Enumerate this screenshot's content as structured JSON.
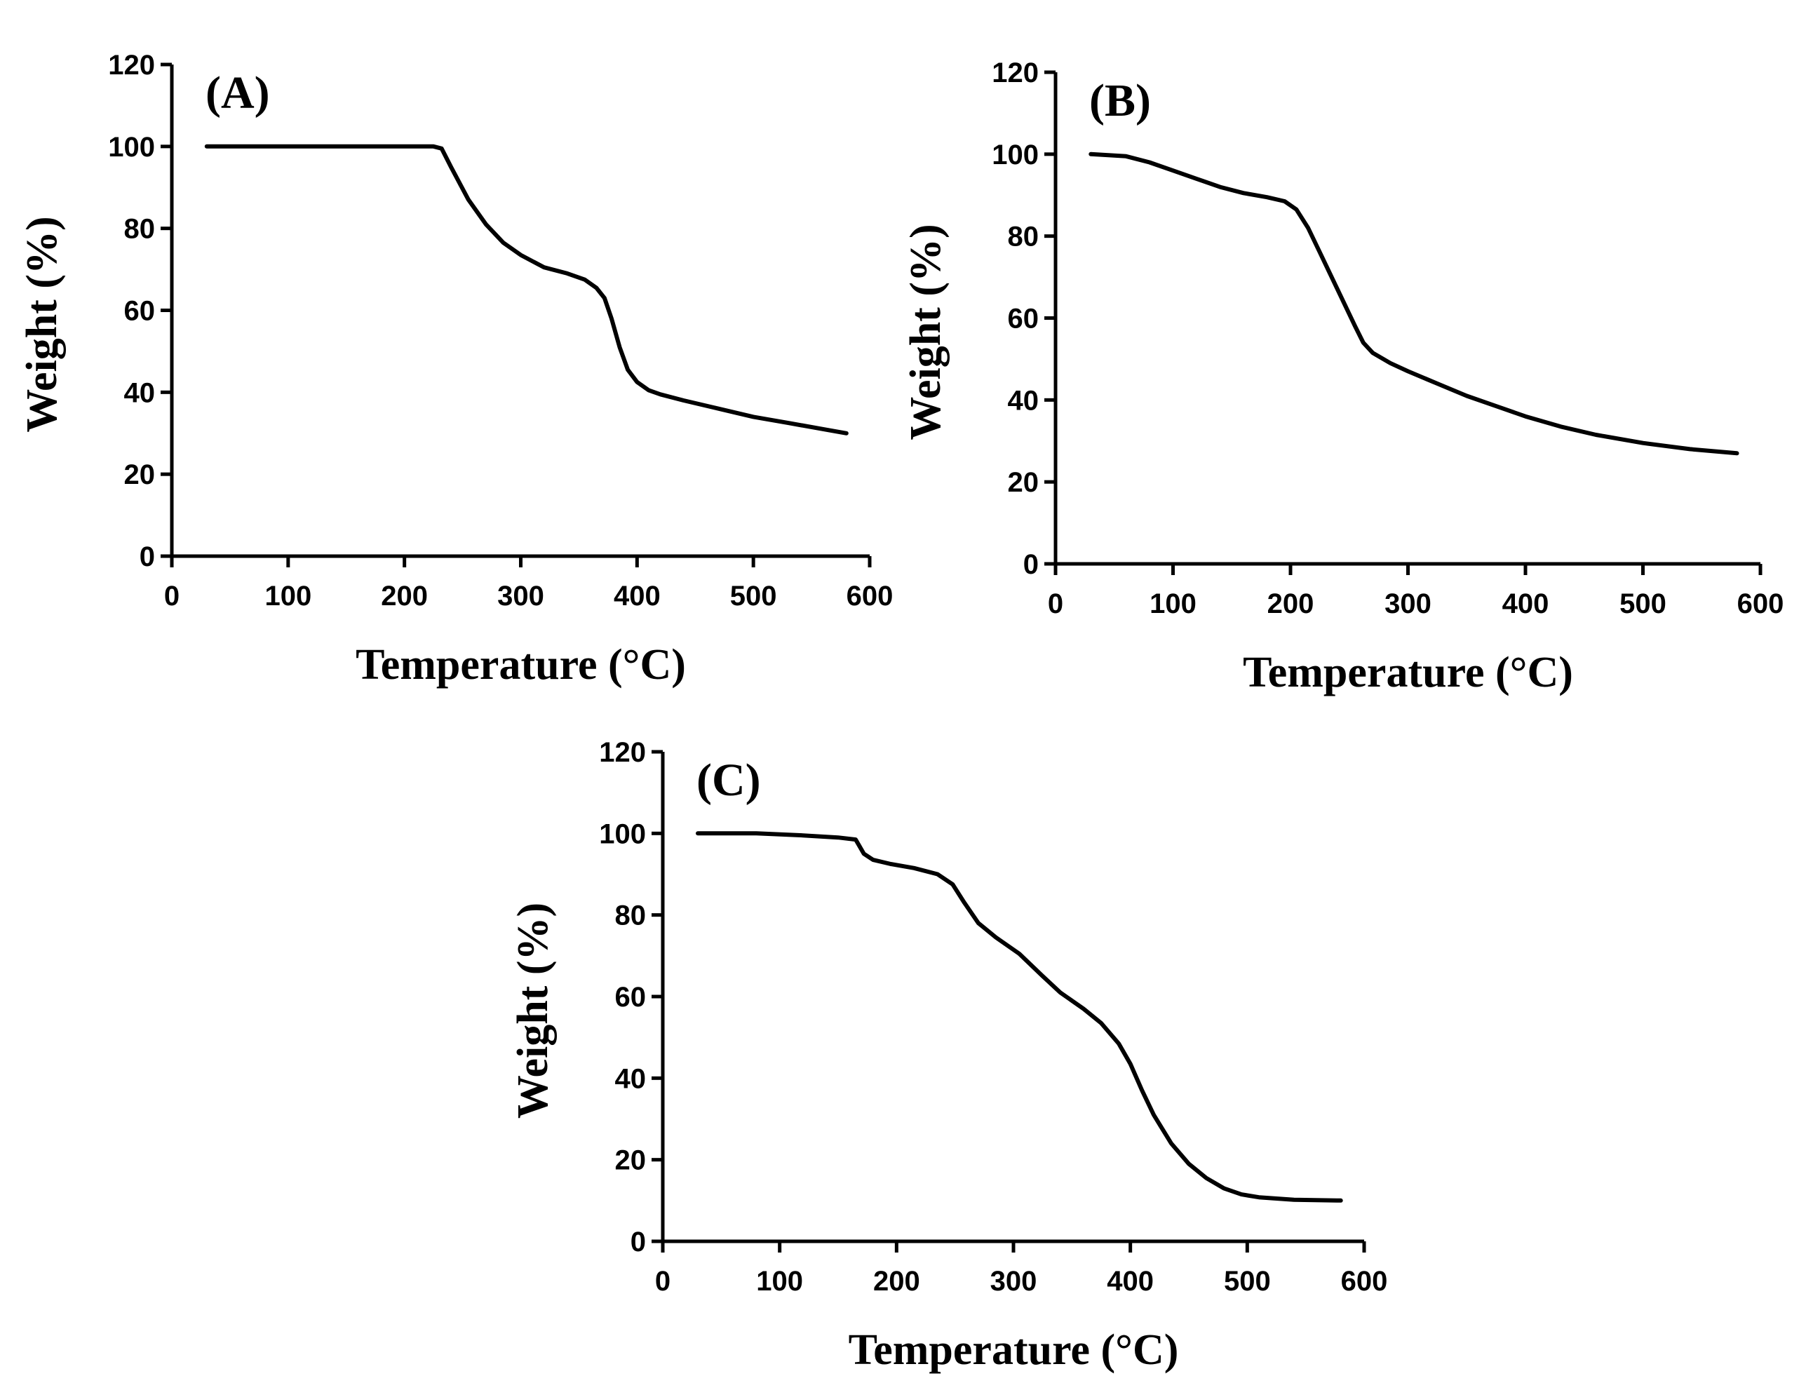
{
  "chart_data": [
    {
      "type": "line",
      "title": "(A)",
      "xlabel": "Temperature (°C)",
      "ylabel": "Weight (%)",
      "xlim": [
        0,
        600
      ],
      "ylim": [
        0,
        120
      ],
      "xticks": [
        0,
        100,
        200,
        300,
        400,
        500,
        600
      ],
      "yticks": [
        0,
        20,
        40,
        60,
        80,
        100,
        120
      ],
      "grid": false,
      "series": [
        {
          "x": [
            30,
            100,
            200,
            225,
            232,
            240,
            255,
            270,
            285,
            300,
            320,
            340,
            355,
            365,
            372,
            378,
            385,
            392,
            400,
            410,
            420,
            440,
            470,
            500,
            530,
            560,
            580
          ],
          "y": [
            100,
            100,
            100,
            100,
            99.5,
            95,
            87,
            81,
            76.5,
            73.5,
            70.5,
            69,
            67.5,
            65.5,
            63,
            58,
            51,
            45.5,
            42.5,
            40.5,
            39.5,
            38,
            36,
            34,
            32.5,
            31,
            30
          ]
        }
      ]
    },
    {
      "type": "line",
      "title": "(B)",
      "xlabel": "Temperature (°C)",
      "ylabel": "Weight (%)",
      "xlim": [
        0,
        600
      ],
      "ylim": [
        0,
        120
      ],
      "xticks": [
        0,
        100,
        200,
        300,
        400,
        500,
        600
      ],
      "yticks": [
        0,
        20,
        40,
        60,
        80,
        100,
        120
      ],
      "grid": false,
      "series": [
        {
          "x": [
            30,
            60,
            80,
            100,
            120,
            140,
            160,
            180,
            195,
            205,
            215,
            225,
            240,
            255,
            262,
            270,
            285,
            300,
            325,
            350,
            375,
            400,
            430,
            460,
            500,
            540,
            580
          ],
          "y": [
            100,
            99.5,
            98,
            96,
            94,
            92,
            90.5,
            89.5,
            88.5,
            86.5,
            82,
            76,
            67,
            58,
            54,
            51.5,
            49,
            47,
            44,
            41,
            38.5,
            36,
            33.5,
            31.5,
            29.5,
            28,
            27
          ]
        }
      ]
    },
    {
      "type": "line",
      "title": "(C)",
      "xlabel": "Temperature (°C)",
      "ylabel": "Weight (%)",
      "xlim": [
        0,
        600
      ],
      "ylim": [
        0,
        120
      ],
      "xticks": [
        0,
        100,
        200,
        300,
        400,
        500,
        600
      ],
      "yticks": [
        0,
        20,
        40,
        60,
        80,
        100,
        120
      ],
      "grid": false,
      "series": [
        {
          "x": [
            30,
            80,
            120,
            150,
            165,
            168,
            172,
            180,
            195,
            215,
            235,
            248,
            258,
            270,
            285,
            305,
            325,
            340,
            360,
            375,
            390,
            400,
            410,
            420,
            435,
            450,
            465,
            480,
            495,
            510,
            540,
            580
          ],
          "y": [
            100,
            100,
            99.5,
            99,
            98.5,
            97,
            95,
            93.5,
            92.5,
            91.5,
            90,
            87.5,
            83,
            78,
            74.5,
            70.5,
            65,
            61,
            57,
            53.5,
            48.5,
            43.5,
            37,
            31,
            24,
            19,
            15.5,
            13,
            11.5,
            10.8,
            10.2,
            10
          ]
        }
      ]
    }
  ]
}
